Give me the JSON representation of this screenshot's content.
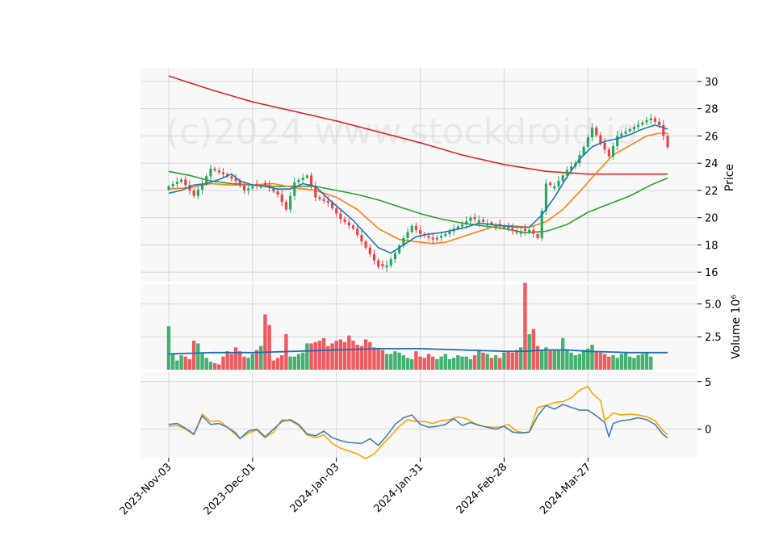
{
  "chart_data": {
    "type": "candlestick",
    "watermark": "(c)2024 www.stockdroid.io",
    "colors": {
      "up": "#26a65b",
      "down": "#ef3f45",
      "background": "#f8f8f8",
      "grid": "#d6d6d6",
      "sma_short": "#1f77b4",
      "sma_mid": "#ff7f0e",
      "sma_long": "#2ca02c",
      "sma_200": "#d62728",
      "volume_ma": "#1f6fb0",
      "osc_blue": "#4682b4",
      "osc_orange": "#ffa500"
    },
    "x_tick_labels": [
      "2023-Nov-03",
      "2023-Dec-01",
      "2024-Jan-03",
      "2024-Jan-31",
      "2024-Feb-28",
      "2024-Mar-27"
    ],
    "x_tick_indices": [
      0,
      20,
      40,
      60,
      80,
      100
    ],
    "n_bars": 120,
    "price_panel": {
      "ylabel": "Price",
      "ylim": [
        15.3,
        31
      ],
      "yticks": [
        16,
        18,
        20,
        22,
        24,
        26,
        28,
        30
      ],
      "close_anchors": [
        [
          0,
          22.3
        ],
        [
          3,
          22.8
        ],
        [
          6,
          21.6
        ],
        [
          8,
          22.5
        ],
        [
          10,
          23.6
        ],
        [
          13,
          23.2
        ],
        [
          16,
          22.7
        ],
        [
          18,
          22.0
        ],
        [
          20,
          22.3
        ],
        [
          23,
          22.4
        ],
        [
          26,
          21.7
        ],
        [
          28,
          20.6
        ],
        [
          30,
          22.6
        ],
        [
          33,
          23.1
        ],
        [
          35,
          21.5
        ],
        [
          38,
          21.1
        ],
        [
          41,
          19.9
        ],
        [
          44,
          19.2
        ],
        [
          47,
          17.8
        ],
        [
          50,
          16.4
        ],
        [
          52,
          16.5
        ],
        [
          54,
          17.4
        ],
        [
          56,
          18.5
        ],
        [
          58,
          19.4
        ],
        [
          60,
          18.8
        ],
        [
          63,
          18.4
        ],
        [
          66,
          18.8
        ],
        [
          68,
          19.2
        ],
        [
          70,
          19.5
        ],
        [
          72,
          20.0
        ],
        [
          75,
          19.7
        ],
        [
          78,
          19.4
        ],
        [
          80,
          19.4
        ],
        [
          83,
          18.9
        ],
        [
          86,
          19.1
        ],
        [
          88,
          18.5
        ],
        [
          90,
          22.5
        ],
        [
          92,
          22.3
        ],
        [
          95,
          23.5
        ],
        [
          97,
          24.0
        ],
        [
          99,
          25.2
        ],
        [
          101,
          26.6
        ],
        [
          103,
          25.5
        ],
        [
          105,
          24.5
        ],
        [
          107,
          26.0
        ],
        [
          110,
          26.5
        ],
        [
          113,
          27.0
        ],
        [
          115,
          27.3
        ],
        [
          117,
          26.8
        ],
        [
          119,
          25.2
        ]
      ],
      "sma_short_anchors": [
        [
          0,
          21.8
        ],
        [
          3,
          22.0
        ],
        [
          6,
          22.4
        ],
        [
          9,
          22.5
        ],
        [
          12,
          22.8
        ],
        [
          15,
          23.2
        ],
        [
          17,
          22.7
        ],
        [
          20,
          22.4
        ],
        [
          23,
          22.3
        ],
        [
          26,
          22.1
        ],
        [
          29,
          22.1
        ],
        [
          32,
          22.5
        ],
        [
          35,
          22.3
        ],
        [
          38,
          21.4
        ],
        [
          41,
          20.6
        ],
        [
          44,
          19.8
        ],
        [
          47,
          18.8
        ],
        [
          50,
          17.8
        ],
        [
          53,
          17.4
        ],
        [
          56,
          18.0
        ],
        [
          59,
          18.6
        ],
        [
          62,
          18.8
        ],
        [
          65,
          18.9
        ],
        [
          68,
          19.1
        ],
        [
          71,
          19.3
        ],
        [
          74,
          19.6
        ],
        [
          77,
          19.5
        ],
        [
          80,
          19.4
        ],
        [
          83,
          19.3
        ],
        [
          86,
          19.3
        ],
        [
          89,
          20.2
        ],
        [
          92,
          21.5
        ],
        [
          95,
          23.0
        ],
        [
          98,
          24.3
        ],
        [
          101,
          25.2
        ],
        [
          104,
          25.6
        ],
        [
          107,
          25.8
        ],
        [
          110,
          26.1
        ],
        [
          113,
          26.5
        ],
        [
          116,
          26.8
        ],
        [
          119,
          26.5
        ]
      ],
      "sma_mid_anchors": [
        [
          0,
          22.1
        ],
        [
          5,
          22.2
        ],
        [
          10,
          22.5
        ],
        [
          15,
          22.4
        ],
        [
          20,
          22.4
        ],
        [
          25,
          22.5
        ],
        [
          30,
          22.2
        ],
        [
          35,
          22.0
        ],
        [
          40,
          21.5
        ],
        [
          45,
          20.6
        ],
        [
          50,
          19.2
        ],
        [
          55,
          18.4
        ],
        [
          60,
          18.2
        ],
        [
          63,
          18.1
        ],
        [
          66,
          18.2
        ],
        [
          70,
          18.6
        ],
        [
          74,
          19.0
        ],
        [
          78,
          19.4
        ],
        [
          82,
          19.4
        ],
        [
          86,
          19.3
        ],
        [
          90,
          19.7
        ],
        [
          94,
          20.6
        ],
        [
          98,
          21.9
        ],
        [
          102,
          23.3
        ],
        [
          106,
          24.6
        ],
        [
          110,
          25.3
        ],
        [
          114,
          26.0
        ],
        [
          117,
          26.2
        ],
        [
          119,
          26.2
        ]
      ],
      "sma_long_anchors": [
        [
          0,
          23.4
        ],
        [
          5,
          23.1
        ],
        [
          10,
          22.7
        ],
        [
          15,
          22.5
        ],
        [
          20,
          22.4
        ],
        [
          25,
          22.3
        ],
        [
          30,
          22.3
        ],
        [
          35,
          22.3
        ],
        [
          40,
          22.0
        ],
        [
          45,
          21.7
        ],
        [
          50,
          21.3
        ],
        [
          55,
          20.8
        ],
        [
          60,
          20.3
        ],
        [
          65,
          19.9
        ],
        [
          70,
          19.6
        ],
        [
          75,
          19.4
        ],
        [
          80,
          19.2
        ],
        [
          85,
          18.9
        ],
        [
          90,
          19.0
        ],
        [
          95,
          19.5
        ],
        [
          100,
          20.4
        ],
        [
          105,
          21.0
        ],
        [
          110,
          21.6
        ],
        [
          115,
          22.4
        ],
        [
          119,
          22.9
        ]
      ],
      "sma_200_anchors": [
        [
          0,
          30.4
        ],
        [
          10,
          29.4
        ],
        [
          20,
          28.5
        ],
        [
          30,
          27.8
        ],
        [
          40,
          27.1
        ],
        [
          50,
          26.3
        ],
        [
          60,
          25.5
        ],
        [
          70,
          24.6
        ],
        [
          80,
          23.9
        ],
        [
          90,
          23.4
        ],
        [
          95,
          23.3
        ],
        [
          100,
          23.2
        ],
        [
          110,
          23.2
        ],
        [
          119,
          23.2
        ]
      ]
    },
    "volume_panel": {
      "ylabel": "Volume  10⁶",
      "ylim": [
        0,
        6.5
      ],
      "yticks": [
        2.5,
        5.0
      ],
      "ytick_labels": [
        "2.5",
        "5.0"
      ],
      "values": [
        3.3,
        1.2,
        0.7,
        1.1,
        1.0,
        0.8,
        2.2,
        2.0,
        1.3,
        0.9,
        0.6,
        0.5,
        0.4,
        1.0,
        1.4,
        1.2,
        1.7,
        1.4,
        1.0,
        0.9,
        1.2,
        1.5,
        1.8,
        4.2,
        3.4,
        0.7,
        0.9,
        1.1,
        2.7,
        1.0,
        1.0,
        1.2,
        1.3,
        2.0,
        2.0,
        2.1,
        2.2,
        2.4,
        1.8,
        2.0,
        2.2,
        2.3,
        2.1,
        2.6,
        2.2,
        1.9,
        1.8,
        2.3,
        2.1,
        1.7,
        1.6,
        1.5,
        1.2,
        1.2,
        1.4,
        1.3,
        1.1,
        0.9,
        0.8,
        1.4,
        1.0,
        0.9,
        1.2,
        1.0,
        0.8,
        1.0,
        1.2,
        0.8,
        0.9,
        1.1,
        1.0,
        1.0,
        0.8,
        1.1,
        1.5,
        1.3,
        1.2,
        0.9,
        1.1,
        0.9,
        1.3,
        1.4,
        1.3,
        1.5,
        1.7,
        6.6,
        2.7,
        3.1,
        1.8,
        1.5,
        1.7,
        1.5,
        1.5,
        1.5,
        2.4,
        1.5,
        1.3,
        1.1,
        1.2,
        1.5,
        1.6,
        1.9,
        1.4,
        1.3,
        1.2,
        1.0,
        1.1,
        0.9,
        1.2,
        1.3,
        1.0,
        0.9,
        1.1,
        1.2,
        1.3,
        1.0
      ],
      "ma_anchors": [
        [
          0,
          1.2
        ],
        [
          10,
          1.3
        ],
        [
          20,
          1.3
        ],
        [
          30,
          1.4
        ],
        [
          40,
          1.5
        ],
        [
          50,
          1.6
        ],
        [
          60,
          1.6
        ],
        [
          70,
          1.5
        ],
        [
          80,
          1.4
        ],
        [
          85,
          1.4
        ],
        [
          90,
          1.5
        ],
        [
          95,
          1.5
        ],
        [
          100,
          1.4
        ],
        [
          110,
          1.3
        ],
        [
          119,
          1.3
        ]
      ]
    },
    "oscillator_panel": {
      "ylim": [
        -3,
        6
      ],
      "yticks": [
        0,
        5
      ],
      "ytick_labels": [
        "0",
        "5"
      ],
      "blue_anchors": [
        [
          0,
          0.5
        ],
        [
          2,
          0.6
        ],
        [
          4,
          0.1
        ],
        [
          6,
          -0.5
        ],
        [
          8,
          1.4
        ],
        [
          10,
          0.5
        ],
        [
          12,
          0.6
        ],
        [
          14,
          0.2
        ],
        [
          16,
          -0.4
        ],
        [
          17,
          -1.0
        ],
        [
          19,
          -0.2
        ],
        [
          21,
          0.0
        ],
        [
          23,
          -0.8
        ],
        [
          25,
          0.0
        ],
        [
          27,
          0.8
        ],
        [
          29,
          1.0
        ],
        [
          31,
          0.5
        ],
        [
          33,
          -0.5
        ],
        [
          35,
          -0.7
        ],
        [
          37,
          -0.2
        ],
        [
          39,
          -0.9
        ],
        [
          41,
          -1.2
        ],
        [
          43,
          -1.4
        ],
        [
          46,
          -1.5
        ],
        [
          48,
          -1.0
        ],
        [
          50,
          -1.7
        ],
        [
          52,
          -0.7
        ],
        [
          54,
          0.5
        ],
        [
          56,
          1.2
        ],
        [
          58,
          1.5
        ],
        [
          60,
          0.5
        ],
        [
          62,
          0.2
        ],
        [
          64,
          0.3
        ],
        [
          66,
          0.5
        ],
        [
          68,
          1.1
        ],
        [
          70,
          0.4
        ],
        [
          72,
          0.7
        ],
        [
          74,
          0.4
        ],
        [
          76,
          0.2
        ],
        [
          78,
          0.0
        ],
        [
          80,
          0.3
        ],
        [
          82,
          -0.3
        ],
        [
          84,
          -0.4
        ],
        [
          86,
          -0.3
        ],
        [
          88,
          1.4
        ],
        [
          90,
          2.5
        ],
        [
          92,
          2.1
        ],
        [
          94,
          2.6
        ],
        [
          96,
          2.3
        ],
        [
          98,
          2.0
        ],
        [
          100,
          2.0
        ],
        [
          102,
          1.4
        ],
        [
          104,
          0.7
        ],
        [
          105,
          -0.8
        ],
        [
          106,
          0.6
        ],
        [
          108,
          0.9
        ],
        [
          110,
          1.0
        ],
        [
          112,
          1.2
        ],
        [
          114,
          1.0
        ],
        [
          116,
          0.5
        ],
        [
          118,
          -0.6
        ],
        [
          119,
          -0.9
        ]
      ],
      "orange_anchors": [
        [
          0,
          0.3
        ],
        [
          2,
          0.4
        ],
        [
          4,
          0.0
        ],
        [
          6,
          -0.6
        ],
        [
          8,
          1.6
        ],
        [
          10,
          0.8
        ],
        [
          12,
          0.9
        ],
        [
          14,
          0.2
        ],
        [
          16,
          -0.6
        ],
        [
          17,
          -1.0
        ],
        [
          19,
          -0.4
        ],
        [
          21,
          -0.1
        ],
        [
          23,
          -0.9
        ],
        [
          25,
          -0.3
        ],
        [
          27,
          1.0
        ],
        [
          29,
          0.9
        ],
        [
          31,
          0.4
        ],
        [
          33,
          -0.6
        ],
        [
          35,
          -0.9
        ],
        [
          37,
          -0.6
        ],
        [
          39,
          -1.5
        ],
        [
          41,
          -2.0
        ],
        [
          43,
          -2.3
        ],
        [
          45,
          -2.6
        ],
        [
          47,
          -3.1
        ],
        [
          49,
          -2.6
        ],
        [
          51,
          -1.6
        ],
        [
          53,
          -0.7
        ],
        [
          55,
          0.3
        ],
        [
          57,
          1.0
        ],
        [
          59,
          0.8
        ],
        [
          61,
          0.8
        ],
        [
          63,
          0.6
        ],
        [
          65,
          0.9
        ],
        [
          67,
          1.0
        ],
        [
          69,
          1.3
        ],
        [
          71,
          1.1
        ],
        [
          73,
          0.6
        ],
        [
          75,
          0.3
        ],
        [
          77,
          0.2
        ],
        [
          79,
          0.2
        ],
        [
          81,
          0.5
        ],
        [
          83,
          -0.2
        ],
        [
          85,
          -0.4
        ],
        [
          86,
          -0.3
        ],
        [
          88,
          2.3
        ],
        [
          90,
          2.5
        ],
        [
          92,
          2.8
        ],
        [
          94,
          2.9
        ],
        [
          96,
          3.3
        ],
        [
          98,
          4.1
        ],
        [
          100,
          4.5
        ],
        [
          101,
          3.8
        ],
        [
          103,
          3.0
        ],
        [
          104,
          0.9
        ],
        [
          105,
          1.3
        ],
        [
          106,
          1.7
        ],
        [
          108,
          1.5
        ],
        [
          110,
          1.6
        ],
        [
          112,
          1.5
        ],
        [
          114,
          1.3
        ],
        [
          116,
          0.9
        ],
        [
          118,
          -0.2
        ],
        [
          119,
          -0.6
        ]
      ]
    }
  }
}
